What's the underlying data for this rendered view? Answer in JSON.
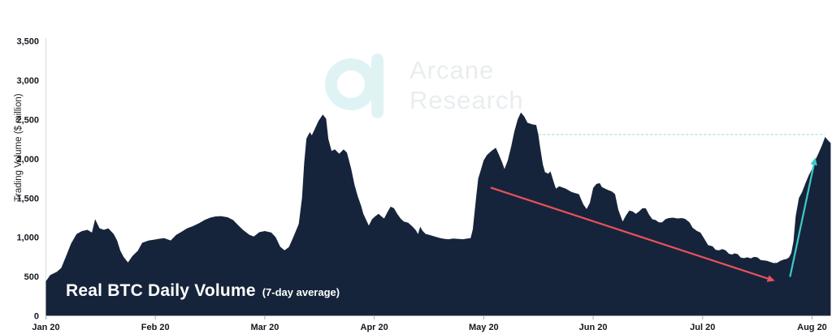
{
  "watermark": {
    "line1": "Arcane",
    "line2": "Research"
  },
  "chart_data": {
    "type": "area",
    "title": "Real BTC Daily Volume",
    "subtitle": "(7-day average)",
    "ylabel": "Trading Volume ($ million)",
    "xlabel": "",
    "x_unit": "months since Jan 2020 (0 = Jan 20, 7 = Aug 20)",
    "x_tick_labels": [
      "Jan 20",
      "Feb 20",
      "Mar 20",
      "Apr 20",
      "May 20",
      "Jun 20",
      "Jul 20",
      "Aug 20"
    ],
    "y_ticks": [
      {
        "value": 0,
        "label": "0"
      },
      {
        "value": 500,
        "label": "500"
      },
      {
        "value": 1000,
        "label": "1,000"
      },
      {
        "value": 1500,
        "label": "1,500"
      },
      {
        "value": 2000,
        "label": "2,000"
      },
      {
        "value": 2500,
        "label": "2,500"
      },
      {
        "value": 3000,
        "label": "3,000"
      },
      {
        "value": 3500,
        "label": "3,500"
      }
    ],
    "ylim": [
      0,
      3500
    ],
    "grid": false,
    "legend": "none",
    "series": [
      {
        "name": "Real BTC daily volume, 7-day average ($ million)",
        "points": [
          [
            0.0,
            440
          ],
          [
            0.04,
            520
          ],
          [
            0.1,
            560
          ],
          [
            0.14,
            610
          ],
          [
            0.19,
            780
          ],
          [
            0.23,
            920
          ],
          [
            0.28,
            1040
          ],
          [
            0.33,
            1080
          ],
          [
            0.38,
            1095
          ],
          [
            0.42,
            1060
          ],
          [
            0.45,
            1230
          ],
          [
            0.49,
            1115
          ],
          [
            0.53,
            1095
          ],
          [
            0.57,
            1115
          ],
          [
            0.62,
            1040
          ],
          [
            0.65,
            960
          ],
          [
            0.68,
            830
          ],
          [
            0.71,
            750
          ],
          [
            0.75,
            680
          ],
          [
            0.79,
            760
          ],
          [
            0.84,
            830
          ],
          [
            0.88,
            930
          ],
          [
            0.94,
            960
          ],
          [
            0.99,
            970
          ],
          [
            1.03,
            980
          ],
          [
            1.08,
            990
          ],
          [
            1.14,
            960
          ],
          [
            1.19,
            1030
          ],
          [
            1.24,
            1070
          ],
          [
            1.29,
            1115
          ],
          [
            1.34,
            1140
          ],
          [
            1.4,
            1180
          ],
          [
            1.45,
            1220
          ],
          [
            1.5,
            1250
          ],
          [
            1.55,
            1265
          ],
          [
            1.6,
            1270
          ],
          [
            1.66,
            1255
          ],
          [
            1.71,
            1220
          ],
          [
            1.76,
            1150
          ],
          [
            1.8,
            1095
          ],
          [
            1.86,
            1030
          ],
          [
            1.9,
            1010
          ],
          [
            1.95,
            1065
          ],
          [
            2.0,
            1080
          ],
          [
            2.06,
            1060
          ],
          [
            2.1,
            1000
          ],
          [
            2.14,
            880
          ],
          [
            2.18,
            835
          ],
          [
            2.22,
            875
          ],
          [
            2.26,
            1000
          ],
          [
            2.31,
            1170
          ],
          [
            2.34,
            1500
          ],
          [
            2.36,
            1950
          ],
          [
            2.38,
            2255
          ],
          [
            2.41,
            2340
          ],
          [
            2.43,
            2300
          ],
          [
            2.46,
            2390
          ],
          [
            2.49,
            2480
          ],
          [
            2.53,
            2565
          ],
          [
            2.56,
            2510
          ],
          [
            2.58,
            2255
          ],
          [
            2.61,
            2100
          ],
          [
            2.64,
            2120
          ],
          [
            2.68,
            2065
          ],
          [
            2.72,
            2120
          ],
          [
            2.75,
            2080
          ],
          [
            2.79,
            1870
          ],
          [
            2.82,
            1665
          ],
          [
            2.85,
            1520
          ],
          [
            2.88,
            1400
          ],
          [
            2.9,
            1300
          ],
          [
            2.93,
            1210
          ],
          [
            2.95,
            1150
          ],
          [
            2.98,
            1230
          ],
          [
            3.01,
            1270
          ],
          [
            3.04,
            1300
          ],
          [
            3.07,
            1260
          ],
          [
            3.09,
            1240
          ],
          [
            3.12,
            1320
          ],
          [
            3.15,
            1390
          ],
          [
            3.18,
            1370
          ],
          [
            3.21,
            1300
          ],
          [
            3.24,
            1240
          ],
          [
            3.27,
            1200
          ],
          [
            3.31,
            1185
          ],
          [
            3.35,
            1135
          ],
          [
            3.38,
            1090
          ],
          [
            3.4,
            1040
          ],
          [
            3.42,
            1135
          ],
          [
            3.44,
            1085
          ],
          [
            3.47,
            1042
          ],
          [
            3.5,
            1032
          ],
          [
            3.55,
            1011
          ],
          [
            3.6,
            991
          ],
          [
            3.64,
            980
          ],
          [
            3.68,
            975
          ],
          [
            3.72,
            985
          ],
          [
            3.76,
            980
          ],
          [
            3.81,
            975
          ],
          [
            3.85,
            985
          ],
          [
            3.88,
            990
          ],
          [
            3.9,
            1100
          ],
          [
            3.93,
            1500
          ],
          [
            3.95,
            1750
          ],
          [
            3.97,
            1840
          ],
          [
            4.0,
            1980
          ],
          [
            4.03,
            2050
          ],
          [
            4.07,
            2100
          ],
          [
            4.11,
            2140
          ],
          [
            4.14,
            2050
          ],
          [
            4.17,
            1950
          ],
          [
            4.19,
            1870
          ],
          [
            4.22,
            1980
          ],
          [
            4.25,
            2150
          ],
          [
            4.28,
            2350
          ],
          [
            4.31,
            2500
          ],
          [
            4.34,
            2590
          ],
          [
            4.37,
            2540
          ],
          [
            4.4,
            2460
          ],
          [
            4.44,
            2440
          ],
          [
            4.48,
            2430
          ],
          [
            4.5,
            2300
          ],
          [
            4.51,
            2200
          ],
          [
            4.54,
            1930
          ],
          [
            4.56,
            1830
          ],
          [
            4.59,
            1810
          ],
          [
            4.61,
            1840
          ],
          [
            4.64,
            1700
          ],
          [
            4.66,
            1620
          ],
          [
            4.69,
            1650
          ],
          [
            4.71,
            1640
          ],
          [
            4.75,
            1620
          ],
          [
            4.8,
            1580
          ],
          [
            4.83,
            1565
          ],
          [
            4.87,
            1550
          ],
          [
            4.91,
            1420
          ],
          [
            4.94,
            1360
          ],
          [
            4.97,
            1440
          ],
          [
            5.0,
            1630
          ],
          [
            5.03,
            1680
          ],
          [
            5.06,
            1690
          ],
          [
            5.08,
            1640
          ],
          [
            5.11,
            1620
          ],
          [
            5.14,
            1600
          ],
          [
            5.17,
            1585
          ],
          [
            5.2,
            1550
          ],
          [
            5.23,
            1350
          ],
          [
            5.27,
            1200
          ],
          [
            5.3,
            1280
          ],
          [
            5.33,
            1340
          ],
          [
            5.36,
            1330
          ],
          [
            5.39,
            1300
          ],
          [
            5.42,
            1330
          ],
          [
            5.45,
            1370
          ],
          [
            5.48,
            1370
          ],
          [
            5.51,
            1290
          ],
          [
            5.54,
            1230
          ],
          [
            5.57,
            1220
          ],
          [
            5.6,
            1190
          ],
          [
            5.63,
            1190
          ],
          [
            5.66,
            1230
          ],
          [
            5.69,
            1245
          ],
          [
            5.73,
            1250
          ],
          [
            5.77,
            1240
          ],
          [
            5.81,
            1245
          ],
          [
            5.84,
            1235
          ],
          [
            5.88,
            1190
          ],
          [
            5.91,
            1120
          ],
          [
            5.95,
            1080
          ],
          [
            5.98,
            1060
          ],
          [
            6.02,
            970
          ],
          [
            6.05,
            900
          ],
          [
            6.09,
            885
          ],
          [
            6.12,
            840
          ],
          [
            6.15,
            835
          ],
          [
            6.18,
            850
          ],
          [
            6.21,
            835
          ],
          [
            6.24,
            790
          ],
          [
            6.27,
            780
          ],
          [
            6.29,
            795
          ],
          [
            6.32,
            785
          ],
          [
            6.35,
            740
          ],
          [
            6.38,
            735
          ],
          [
            6.41,
            745
          ],
          [
            6.44,
            730
          ],
          [
            6.47,
            750
          ],
          [
            6.5,
            745
          ],
          [
            6.53,
            710
          ],
          [
            6.56,
            705
          ],
          [
            6.59,
            700
          ],
          [
            6.62,
            685
          ],
          [
            6.65,
            672
          ],
          [
            6.68,
            675
          ],
          [
            6.71,
            700
          ],
          [
            6.74,
            715
          ],
          [
            6.77,
            725
          ],
          [
            6.79,
            745
          ],
          [
            6.81,
            800
          ],
          [
            6.83,
            950
          ],
          [
            6.85,
            1270
          ],
          [
            6.88,
            1500
          ],
          [
            6.91,
            1580
          ],
          [
            6.94,
            1690
          ],
          [
            6.97,
            1790
          ],
          [
            7.0,
            1870
          ],
          [
            7.03,
            1985
          ],
          [
            7.06,
            2075
          ],
          [
            7.09,
            2170
          ],
          [
            7.12,
            2280
          ],
          [
            7.14,
            2245
          ],
          [
            7.17,
            2200
          ]
        ]
      }
    ],
    "annotations": {
      "downtrend_arrow": {
        "from": {
          "x": 4.07,
          "value": 1630
        },
        "to": {
          "x": 6.66,
          "value": 445
        }
      },
      "uptrend_arrow": {
        "from": {
          "x": 6.8,
          "value": 505
        },
        "to": {
          "x": 7.03,
          "value": 2015
        }
      },
      "reference_line": {
        "value": 2310,
        "x_start": 4.5,
        "x_end": 7.12,
        "style": "dashed"
      }
    },
    "colors": {
      "area_fill": "#16243B",
      "background": "#FFFFFF",
      "axis_text": "#15181F",
      "axis_line": "#DEDEDE",
      "tick_mark": "#A9A9A9",
      "title_text": "#FFFFFF",
      "downtrend_arrow": "#EA525C",
      "uptrend_arrow": "#3EC9C9",
      "reference_line": "#9BDCDE",
      "watermark_logo": "#E0F3F4",
      "watermark_text": "#E9EDEF"
    }
  }
}
